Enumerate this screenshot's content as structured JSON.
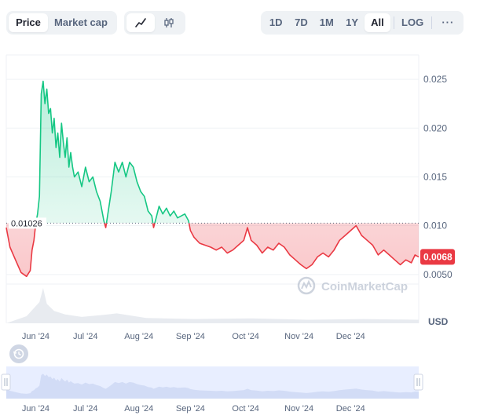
{
  "toolbar": {
    "metric_tabs": [
      {
        "label": "Price",
        "active": true
      },
      {
        "label": "Market cap",
        "active": false
      }
    ],
    "chart_type_buttons": [
      {
        "icon": "line-chart-icon",
        "active": true
      },
      {
        "icon": "candlestick-icon",
        "active": false
      }
    ],
    "ranges": [
      {
        "label": "1D",
        "active": false
      },
      {
        "label": "7D",
        "active": false
      },
      {
        "label": "1M",
        "active": false
      },
      {
        "label": "1Y",
        "active": false
      },
      {
        "label": "All",
        "active": true
      }
    ],
    "log_label": "LOG",
    "more_label": "···"
  },
  "watermark": "CoinMarketCap",
  "currency_label": "USD",
  "colors": {
    "up": "#16c784",
    "down": "#ea3943",
    "accent_nav": "#e0e8ff"
  },
  "chart_data": {
    "type": "area",
    "baseline_value": 0.01026,
    "baseline_label": "0.01026",
    "current_value": 0.0068,
    "current_label": "0.0068",
    "ylim": [
      0.0,
      0.0275
    ],
    "y_ticks": [
      {
        "value": 0.025,
        "label": "0.025"
      },
      {
        "value": 0.02,
        "label": "0.020"
      },
      {
        "value": 0.015,
        "label": "0.015"
      },
      {
        "value": 0.01,
        "label": "0.010"
      },
      {
        "value": 0.005,
        "label": "0.0050"
      }
    ],
    "x_range": [
      "2024-05-21",
      "2024-12-31"
    ],
    "x_ticks": [
      {
        "date": "2024-06-06",
        "label": "Jun '24"
      },
      {
        "date": "2024-07-03",
        "label": "Jul '24"
      },
      {
        "date": "2024-08-01",
        "label": "Aug '24"
      },
      {
        "date": "2024-08-29",
        "label": "Sep '24"
      },
      {
        "date": "2024-09-28",
        "label": "Oct '24"
      },
      {
        "date": "2024-10-27",
        "label": "Nov '24"
      },
      {
        "date": "2024-11-24",
        "label": "Dec '24"
      }
    ],
    "series": [
      {
        "points": [
          [
            "2024-05-21",
            0.0098
          ],
          [
            "2024-05-23",
            0.0078
          ],
          [
            "2024-05-26",
            0.0065
          ],
          [
            "2024-05-29",
            0.0052
          ],
          [
            "2024-06-01",
            0.0048
          ],
          [
            "2024-06-03",
            0.0054
          ],
          [
            "2024-06-04",
            0.0075
          ],
          [
            "2024-06-05",
            0.0085
          ],
          [
            "2024-06-06",
            0.0102
          ],
          [
            "2024-06-07",
            0.0112
          ],
          [
            "2024-06-08",
            0.013
          ],
          [
            "2024-06-09",
            0.0235
          ],
          [
            "2024-06-10",
            0.0248
          ],
          [
            "2024-06-11",
            0.0225
          ],
          [
            "2024-06-12",
            0.024
          ],
          [
            "2024-06-13",
            0.0215
          ],
          [
            "2024-06-14",
            0.022
          ],
          [
            "2024-06-15",
            0.0195
          ],
          [
            "2024-06-16",
            0.021
          ],
          [
            "2024-06-17",
            0.018
          ],
          [
            "2024-06-18",
            0.0195
          ],
          [
            "2024-06-19",
            0.017
          ],
          [
            "2024-06-20",
            0.0205
          ],
          [
            "2024-06-21",
            0.0185
          ],
          [
            "2024-06-22",
            0.017
          ],
          [
            "2024-06-23",
            0.019
          ],
          [
            "2024-06-24",
            0.016
          ],
          [
            "2024-06-25",
            0.0175
          ],
          [
            "2024-06-26",
            0.016
          ],
          [
            "2024-06-27",
            0.015
          ],
          [
            "2024-06-29",
            0.0155
          ],
          [
            "2024-07-01",
            0.014
          ],
          [
            "2024-07-03",
            0.016
          ],
          [
            "2024-07-05",
            0.0145
          ],
          [
            "2024-07-07",
            0.015
          ],
          [
            "2024-07-09",
            0.0135
          ],
          [
            "2024-07-11",
            0.0125
          ],
          [
            "2024-07-13",
            0.0105
          ],
          [
            "2024-07-14",
            0.0098
          ],
          [
            "2024-07-15",
            0.011
          ],
          [
            "2024-07-17",
            0.0135
          ],
          [
            "2024-07-19",
            0.0165
          ],
          [
            "2024-07-21",
            0.0155
          ],
          [
            "2024-07-23",
            0.0165
          ],
          [
            "2024-07-25",
            0.015
          ],
          [
            "2024-07-27",
            0.0165
          ],
          [
            "2024-07-29",
            0.016
          ],
          [
            "2024-07-31",
            0.0145
          ],
          [
            "2024-08-02",
            0.0135
          ],
          [
            "2024-08-04",
            0.013
          ],
          [
            "2024-08-06",
            0.0115
          ],
          [
            "2024-08-08",
            0.011
          ],
          [
            "2024-08-09",
            0.0098
          ],
          [
            "2024-08-10",
            0.0105
          ],
          [
            "2024-08-12",
            0.012
          ],
          [
            "2024-08-14",
            0.0112
          ],
          [
            "2024-08-16",
            0.0118
          ],
          [
            "2024-08-18",
            0.011
          ],
          [
            "2024-08-20",
            0.0115
          ],
          [
            "2024-08-22",
            0.0108
          ],
          [
            "2024-08-24",
            0.011
          ],
          [
            "2024-08-26",
            0.0112
          ],
          [
            "2024-08-28",
            0.0105
          ],
          [
            "2024-08-29",
            0.0095
          ],
          [
            "2024-08-31",
            0.0088
          ],
          [
            "2024-09-03",
            0.0082
          ],
          [
            "2024-09-06",
            0.008
          ],
          [
            "2024-09-09",
            0.0078
          ],
          [
            "2024-09-12",
            0.0075
          ],
          [
            "2024-09-15",
            0.0078
          ],
          [
            "2024-09-18",
            0.0072
          ],
          [
            "2024-09-21",
            0.0075
          ],
          [
            "2024-09-24",
            0.008
          ],
          [
            "2024-09-27",
            0.0085
          ],
          [
            "2024-09-29",
            0.0098
          ],
          [
            "2024-10-01",
            0.0085
          ],
          [
            "2024-10-04",
            0.008
          ],
          [
            "2024-10-07",
            0.0072
          ],
          [
            "2024-10-10",
            0.0078
          ],
          [
            "2024-10-13",
            0.0075
          ],
          [
            "2024-10-16",
            0.0082
          ],
          [
            "2024-10-19",
            0.0078
          ],
          [
            "2024-10-22",
            0.007
          ],
          [
            "2024-10-25",
            0.0065
          ],
          [
            "2024-10-28",
            0.006
          ],
          [
            "2024-10-31",
            0.0056
          ],
          [
            "2024-11-03",
            0.006
          ],
          [
            "2024-11-06",
            0.0068
          ],
          [
            "2024-11-09",
            0.0072
          ],
          [
            "2024-11-12",
            0.0068
          ],
          [
            "2024-11-15",
            0.0075
          ],
          [
            "2024-11-18",
            0.0085
          ],
          [
            "2024-11-21",
            0.009
          ],
          [
            "2024-11-24",
            0.0095
          ],
          [
            "2024-11-27",
            0.01
          ],
          [
            "2024-11-30",
            0.009
          ],
          [
            "2024-12-03",
            0.0085
          ],
          [
            "2024-12-06",
            0.008
          ],
          [
            "2024-12-09",
            0.007
          ],
          [
            "2024-12-12",
            0.0075
          ],
          [
            "2024-12-15",
            0.007
          ],
          [
            "2024-12-18",
            0.0065
          ],
          [
            "2024-12-21",
            0.006
          ],
          [
            "2024-12-24",
            0.0065
          ],
          [
            "2024-12-27",
            0.0062
          ],
          [
            "2024-12-29",
            0.007
          ],
          [
            "2024-12-31",
            0.0068
          ]
        ]
      }
    ],
    "volume": [
      [
        "2024-06-01",
        0.2
      ],
      [
        "2024-06-08",
        0.6
      ],
      [
        "2024-06-10",
        1.0
      ],
      [
        "2024-06-12",
        0.55
      ],
      [
        "2024-06-16",
        0.35
      ],
      [
        "2024-06-22",
        0.25
      ],
      [
        "2024-07-01",
        0.18
      ],
      [
        "2024-07-15",
        0.25
      ],
      [
        "2024-07-20",
        0.28
      ],
      [
        "2024-08-05",
        0.15
      ],
      [
        "2024-09-01",
        0.12
      ],
      [
        "2024-10-01",
        0.14
      ],
      [
        "2024-11-01",
        0.1
      ],
      [
        "2024-12-01",
        0.12
      ],
      [
        "2024-12-31",
        0.1
      ]
    ],
    "grid": true,
    "legend": "none"
  },
  "navigator": {
    "x_ticks": [
      {
        "date": "2024-06-06",
        "label": "Jun '24"
      },
      {
        "date": "2024-07-03",
        "label": "Jul '24"
      },
      {
        "date": "2024-08-01",
        "label": "Aug '24"
      },
      {
        "date": "2024-08-29",
        "label": "Sep '24"
      },
      {
        "date": "2024-09-28",
        "label": "Oct '24"
      },
      {
        "date": "2024-10-27",
        "label": "Nov '24"
      },
      {
        "date": "2024-11-24",
        "label": "Dec '24"
      }
    ],
    "history_icon": "history-icon"
  }
}
